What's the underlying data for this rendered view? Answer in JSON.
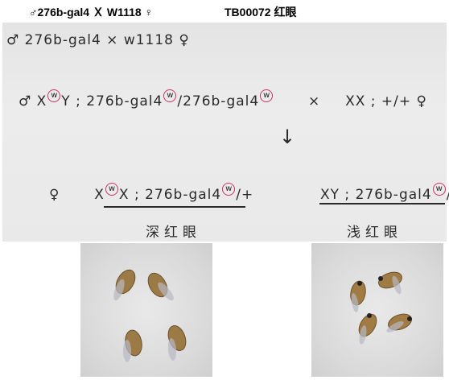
{
  "header": {
    "cross": "♂276b-gal4 Ｘ W1118 ♀",
    "stock": "TB00072 红眼"
  },
  "notes": {
    "line1": "♂ 276b-gal4 × w1118 ♀",
    "line2_male": "♂ X",
    "line2_w": "w",
    "line2_mid": "Y ; 276b-gal4",
    "line2_w2": "w",
    "line2_mid2": "/276b-gal4",
    "line2_w3": "w",
    "line2_cross": "×",
    "line2_female": "XX ; +/+ ♀",
    "arrow": "↓",
    "female_label": "♀",
    "female_genotype_a": "X",
    "female_w": "w",
    "female_genotype_b": "X ; 276b-gal4",
    "female_w2": "w",
    "female_genotype_c": "/+",
    "male_genotype_a": "XY ; 276b-gal4",
    "male_w": "w",
    "male_genotype_b": "/+",
    "female_phenotype": "深红眼",
    "male_phenotype": "浅红眼"
  },
  "colors": {
    "marker_circle": "#d0306b",
    "ink": "#2a2a2a"
  }
}
